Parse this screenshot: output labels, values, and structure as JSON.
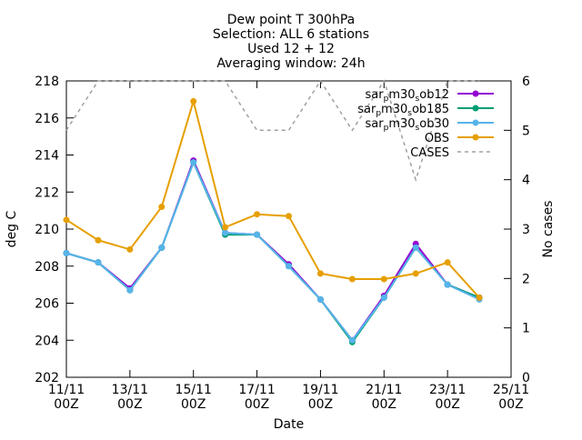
{
  "chart_data": {
    "type": "line",
    "title_lines": [
      "Dew point T 300hPa",
      "Selection: ALL      6 stations",
      "Used 12 + 12",
      "Averaging window: 24h"
    ],
    "xlabel": "Date",
    "ylabel": "deg C",
    "y2label": "No cases",
    "x_range_days": [
      11,
      25
    ],
    "ylim": [
      202,
      218
    ],
    "y2lim": [
      0,
      6
    ],
    "y_ticks": [
      202,
      204,
      206,
      208,
      210,
      212,
      214,
      216,
      218
    ],
    "y2_ticks": [
      0,
      1,
      2,
      3,
      4,
      5,
      6
    ],
    "x_ticks": [
      {
        "day": 11,
        "line1": "11/11",
        "line2": "00Z"
      },
      {
        "day": 13,
        "line1": "13/11",
        "line2": "00Z"
      },
      {
        "day": 15,
        "line1": "15/11",
        "line2": "00Z"
      },
      {
        "day": 17,
        "line1": "17/11",
        "line2": "00Z"
      },
      {
        "day": 19,
        "line1": "19/11",
        "line2": "00Z"
      },
      {
        "day": 21,
        "line1": "21/11",
        "line2": "00Z"
      },
      {
        "day": 23,
        "line1": "23/11",
        "line2": "00Z"
      },
      {
        "day": 25,
        "line1": "25/11",
        "line2": "00Z"
      }
    ],
    "legend_position": "top-right",
    "series": [
      {
        "name_base": "sar",
        "name_sub": "p",
        "name_rest": "m30",
        "name_sub2": "s",
        "name_tail": "ob12",
        "color": "#9400d3",
        "marker": "filled-circle",
        "axis": "y",
        "x": [
          11,
          12,
          13,
          14,
          15,
          16,
          17,
          18,
          19,
          20,
          21,
          22,
          23,
          24
        ],
        "y": [
          208.7,
          208.2,
          206.8,
          209.0,
          213.7,
          209.8,
          209.7,
          208.1,
          206.2,
          204.0,
          206.4,
          209.2,
          207.0,
          206.3
        ]
      },
      {
        "name_base": "sar",
        "name_sub": "p",
        "name_rest": "m30",
        "name_sub2": "s",
        "name_tail": "ob185",
        "color": "#009e73",
        "marker": "filled-circle",
        "axis": "y",
        "x": [
          11,
          12,
          13,
          14,
          15,
          16,
          17,
          18,
          19,
          20,
          21,
          22,
          23,
          24
        ],
        "y": [
          208.7,
          208.2,
          206.7,
          209.0,
          213.6,
          209.7,
          209.7,
          208.0,
          206.2,
          203.9,
          206.3,
          209.0,
          207.0,
          206.3
        ]
      },
      {
        "name_base": "sar",
        "name_sub": "p",
        "name_rest": "m30",
        "name_sub2": "s",
        "name_tail": "ob30",
        "color": "#56b4e9",
        "marker": "filled-circle",
        "axis": "y",
        "x": [
          11,
          12,
          13,
          14,
          15,
          16,
          17,
          18,
          19,
          20,
          21,
          22,
          23,
          24
        ],
        "y": [
          208.7,
          208.2,
          206.7,
          209.0,
          213.6,
          209.8,
          209.7,
          208.0,
          206.2,
          204.0,
          206.3,
          209.0,
          207.0,
          206.2
        ]
      },
      {
        "name": "OBS",
        "color": "#e69f00",
        "marker": "filled-circle",
        "axis": "y",
        "x": [
          11,
          12,
          13,
          14,
          15,
          16,
          17,
          18,
          19,
          20,
          21,
          22,
          23,
          24
        ],
        "y": [
          210.5,
          209.4,
          208.9,
          211.2,
          216.9,
          210.1,
          210.8,
          210.7,
          207.6,
          207.3,
          207.3,
          207.6,
          208.2,
          206.3
        ]
      },
      {
        "name": "CASES",
        "color": "#a0a0a0",
        "marker": "none",
        "dashed": true,
        "axis": "y2",
        "x": [
          11,
          12,
          13,
          14,
          15,
          16,
          17,
          18,
          19,
          20,
          21,
          22,
          23,
          24
        ],
        "y": [
          5,
          6,
          6,
          6,
          6,
          6,
          5,
          5,
          6,
          5,
          6,
          4,
          6,
          6
        ]
      }
    ]
  }
}
